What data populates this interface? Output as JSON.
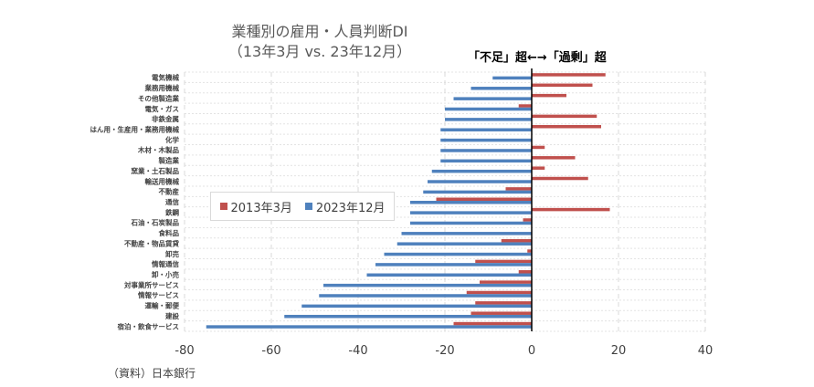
{
  "chart_data": {
    "type": "bar",
    "orientation": "horizontal",
    "title": "業種別の雇用・人員判断DI",
    "subtitle": "（13年3月 vs. 23年12月）",
    "annotation": "「不足」超←→「過剰」超",
    "source": "（資料）日本銀行",
    "xlabel": "",
    "ylabel": "",
    "xlim": [
      -80,
      40
    ],
    "xticks": [
      -80,
      -60,
      -40,
      -20,
      0,
      20,
      40
    ],
    "grid": true,
    "legend_position": "center-left",
    "categories": [
      "電気機械",
      "業務用機械",
      "その他製造業",
      "電気・ガス",
      "非鉄金属",
      "はん用・生産用・業務用機械",
      "化学",
      "木材・木製品",
      "製造業",
      "窯業・土石製品",
      "輸送用機械",
      "不動産",
      "通信",
      "鉄鋼",
      "石油・石炭製品",
      "食料品",
      "不動産・物品賃貸",
      "卸売",
      "情報通信",
      "卸・小売",
      "対事業所サービス",
      "情報サービス",
      "運輸・郵便",
      "建設",
      "宿泊・飲食サービス"
    ],
    "series": [
      {
        "name": "2013年3月",
        "color": "#c0504d",
        "values": [
          17,
          14,
          8,
          -3,
          15,
          16,
          0,
          3,
          10,
          3,
          13,
          -6,
          -22,
          18,
          -2,
          0,
          -7,
          -1,
          -13,
          -3,
          -12,
          -15,
          -13,
          -14,
          -18
        ]
      },
      {
        "name": "2023年12月",
        "color": "#4f81bd",
        "values": [
          -9,
          -14,
          -18,
          -20,
          -20,
          -21,
          -21,
          -21,
          -21,
          -23,
          -24,
          -25,
          -28,
          -28,
          -28,
          -30,
          -31,
          -34,
          -36,
          -38,
          -48,
          -49,
          -53,
          -57,
          -75
        ]
      }
    ]
  }
}
